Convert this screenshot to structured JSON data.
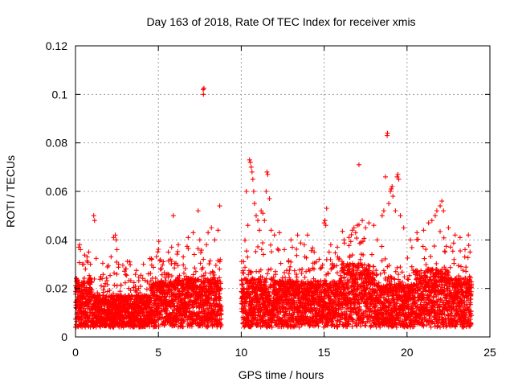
{
  "chart_data": {
    "type": "scatter",
    "title": "Day 163 of 2018, Rate Of TEC Index for receiver xmis",
    "xlabel": "GPS time / hours",
    "ylabel": "ROTI / TECUs",
    "xlim": [
      0,
      25
    ],
    "ylim": [
      0,
      0.12
    ],
    "x_ticks": [
      0,
      5,
      10,
      15,
      20,
      25
    ],
    "x_tick_labels": [
      "0",
      "5",
      "10",
      "15",
      "20",
      "25"
    ],
    "y_ticks": [
      0,
      0.02,
      0.04,
      0.06,
      0.08,
      0.1,
      0.12
    ],
    "y_tick_labels": [
      "0",
      "0.02",
      "0.04",
      "0.06",
      "0.08",
      "0.1",
      "0.12"
    ],
    "grid": true,
    "marker": "+",
    "color": "#ff0000",
    "data_gap_hours": [
      8.8,
      10.0
    ],
    "series": [
      {
        "name": "ROTI",
        "points": [
          [
            0.2,
            0.037
          ],
          [
            0.25,
            0.038
          ],
          [
            0.3,
            0.036
          ],
          [
            0.5,
            0.03
          ],
          [
            0.6,
            0.028
          ],
          [
            0.7,
            0.033
          ],
          [
            0.8,
            0.035
          ],
          [
            0.9,
            0.03
          ],
          [
            1.1,
            0.05
          ],
          [
            1.15,
            0.048
          ],
          [
            1.8,
            0.022
          ],
          [
            2.3,
            0.041
          ],
          [
            2.4,
            0.042
          ],
          [
            2.45,
            0.04
          ],
          [
            2.5,
            0.036
          ],
          [
            2.6,
            0.03
          ],
          [
            3.8,
            0.02
          ],
          [
            4.1,
            0.03
          ],
          [
            4.4,
            0.026
          ],
          [
            4.6,
            0.032
          ],
          [
            5.3,
            0.031
          ],
          [
            5.6,
            0.035
          ],
          [
            5.8,
            0.037
          ],
          [
            5.9,
            0.05
          ],
          [
            6.2,
            0.038
          ],
          [
            6.5,
            0.033
          ],
          [
            6.8,
            0.041
          ],
          [
            7.1,
            0.043
          ],
          [
            7.4,
            0.052
          ],
          [
            7.5,
            0.04
          ],
          [
            7.7,
            0.102
          ],
          [
            7.72,
            0.1
          ],
          [
            7.75,
            0.1025
          ],
          [
            7.9,
            0.038
          ],
          [
            8.0,
            0.043
          ],
          [
            8.2,
            0.045
          ],
          [
            8.4,
            0.04
          ],
          [
            8.6,
            0.044
          ],
          [
            8.7,
            0.054
          ],
          [
            10.3,
            0.06
          ],
          [
            10.4,
            0.046
          ],
          [
            10.5,
            0.073
          ],
          [
            10.55,
            0.072
          ],
          [
            10.6,
            0.07
          ],
          [
            10.65,
            0.068
          ],
          [
            10.7,
            0.065
          ],
          [
            10.75,
            0.06
          ],
          [
            10.8,
            0.055
          ],
          [
            10.9,
            0.05
          ],
          [
            11.0,
            0.048
          ],
          [
            11.1,
            0.044
          ],
          [
            11.2,
            0.052
          ],
          [
            11.3,
            0.051
          ],
          [
            11.4,
            0.048
          ],
          [
            11.5,
            0.06
          ],
          [
            11.55,
            0.068
          ],
          [
            11.6,
            0.067
          ],
          [
            11.7,
            0.057
          ],
          [
            11.8,
            0.044
          ],
          [
            12.0,
            0.042
          ],
          [
            12.3,
            0.043
          ],
          [
            12.6,
            0.036
          ],
          [
            13.0,
            0.04
          ],
          [
            13.4,
            0.042
          ],
          [
            13.8,
            0.038
          ],
          [
            14.0,
            0.042
          ],
          [
            14.4,
            0.035
          ],
          [
            14.7,
            0.032
          ],
          [
            15.0,
            0.047
          ],
          [
            15.05,
            0.048
          ],
          [
            15.1,
            0.046
          ],
          [
            15.15,
            0.053
          ],
          [
            15.4,
            0.038
          ],
          [
            15.8,
            0.037
          ],
          [
            16.2,
            0.04
          ],
          [
            16.5,
            0.041
          ],
          [
            16.7,
            0.044
          ],
          [
            16.8,
            0.045
          ],
          [
            16.9,
            0.043
          ],
          [
            17.0,
            0.046
          ],
          [
            17.1,
            0.071
          ],
          [
            17.3,
            0.048
          ],
          [
            17.5,
            0.045
          ],
          [
            17.7,
            0.047
          ],
          [
            18.0,
            0.046
          ],
          [
            18.2,
            0.04
          ],
          [
            18.5,
            0.05
          ],
          [
            18.6,
            0.052
          ],
          [
            18.7,
            0.066
          ],
          [
            18.8,
            0.083
          ],
          [
            18.82,
            0.084
          ],
          [
            18.9,
            0.055
          ],
          [
            19.0,
            0.06
          ],
          [
            19.05,
            0.061
          ],
          [
            19.1,
            0.062
          ],
          [
            19.15,
            0.058
          ],
          [
            19.3,
            0.052
          ],
          [
            19.4,
            0.066
          ],
          [
            19.45,
            0.067
          ],
          [
            19.5,
            0.065
          ],
          [
            19.6,
            0.05
          ],
          [
            19.8,
            0.045
          ],
          [
            20.2,
            0.04
          ],
          [
            20.6,
            0.043
          ],
          [
            21.0,
            0.044
          ],
          [
            21.3,
            0.047
          ],
          [
            21.5,
            0.048
          ],
          [
            21.7,
            0.05
          ],
          [
            21.8,
            0.052
          ],
          [
            22.0,
            0.054
          ],
          [
            22.1,
            0.056
          ],
          [
            22.2,
            0.052
          ],
          [
            22.5,
            0.045
          ],
          [
            22.9,
            0.042
          ],
          [
            23.2,
            0.041
          ],
          [
            23.5,
            0.036
          ],
          [
            23.7,
            0.042
          ],
          [
            23.8,
            0.035
          ]
        ]
      }
    ]
  }
}
